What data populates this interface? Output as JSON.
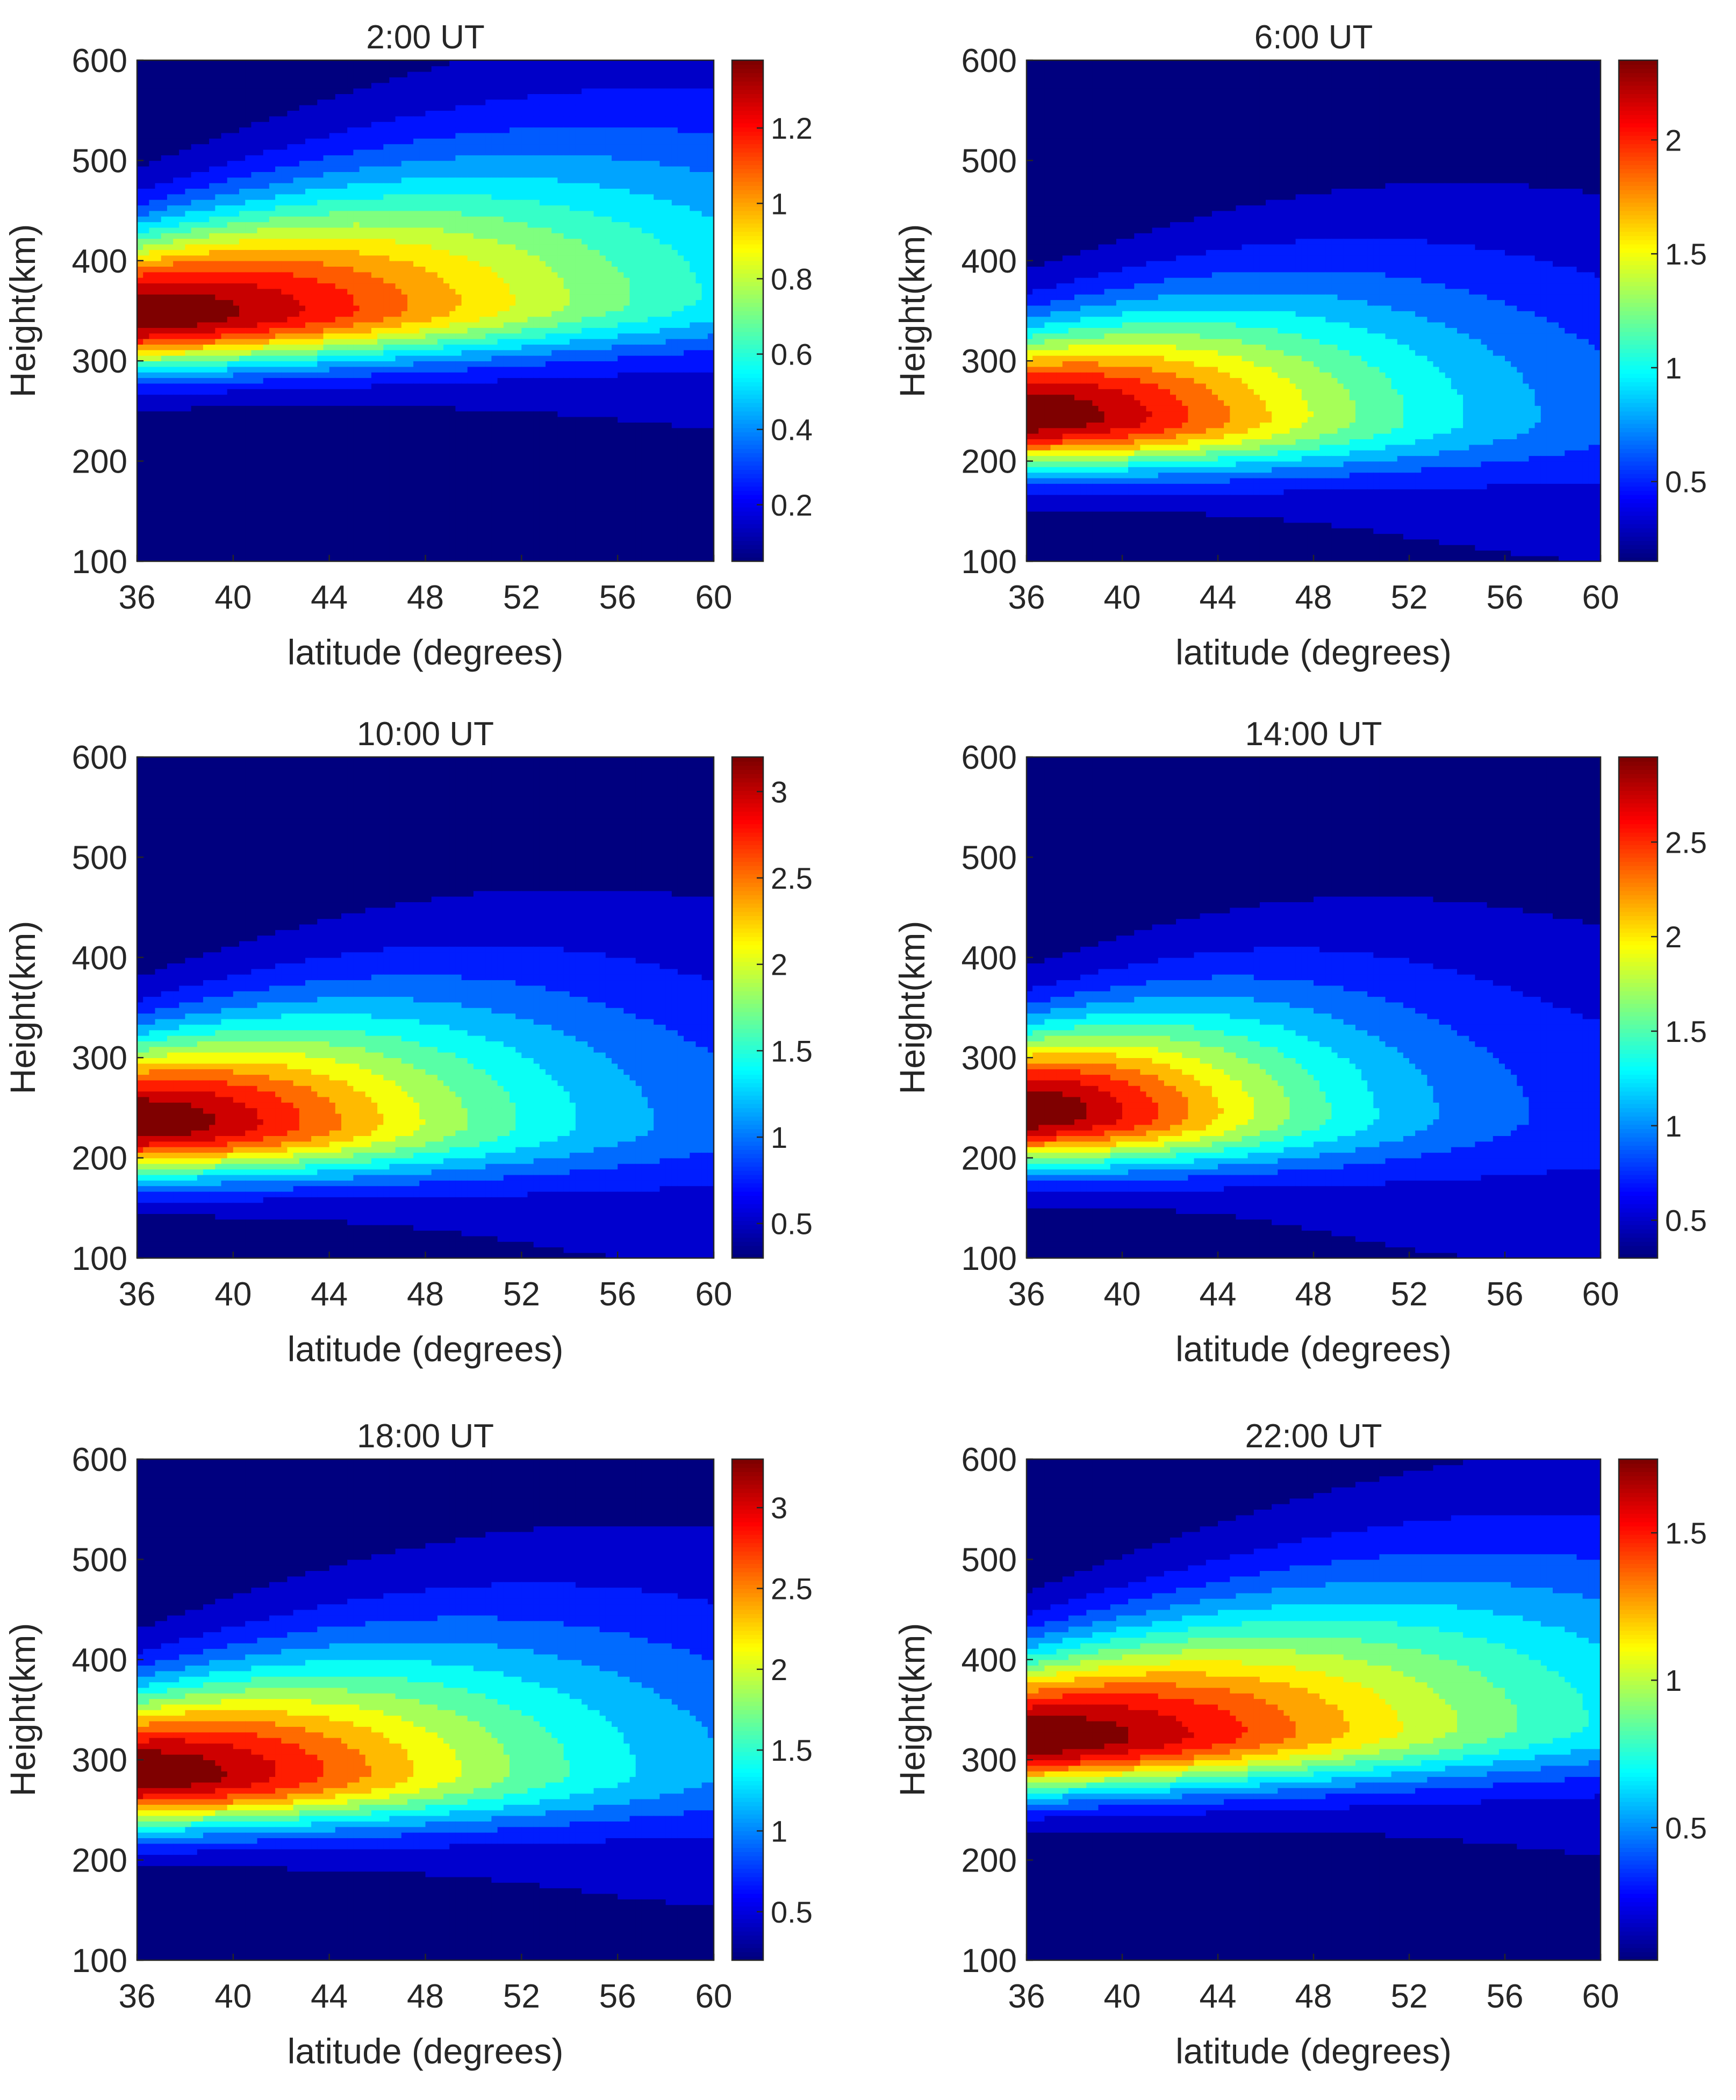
{
  "figure": {
    "rows": 3,
    "cols": 2,
    "colormap": "jet",
    "colormap_stops": [
      "#00007f",
      "#0000ff",
      "#007fff",
      "#00ffff",
      "#7fff7f",
      "#ffff00",
      "#ff7f00",
      "#ff0000",
      "#7f0000"
    ]
  },
  "chart_data": [
    {
      "type": "contourf",
      "title": "2:00 UT",
      "xlabel": "latitude (degrees)",
      "ylabel": "Height(km)",
      "xlim": [
        36,
        60
      ],
      "ylim": [
        100,
        600
      ],
      "x_ticks": [
        36,
        40,
        44,
        48,
        52,
        56,
        60
      ],
      "y_ticks": [
        100,
        200,
        300,
        400,
        500,
        600
      ],
      "colorbar": {
        "range": [
          0.05,
          1.38
        ],
        "ticks": [
          0.2,
          0.4,
          0.6,
          0.8,
          1,
          1.2
        ],
        "tick_labels": [
          "0.2",
          "0.4",
          "0.6",
          "0.8",
          "1",
          "1.2"
        ]
      },
      "peak": {
        "height": [
          345,
          20
        ],
        "lat_decay": [
          21,
          11
        ]
      },
      "levels": 15
    },
    {
      "type": "contourf",
      "title": "6:00 UT",
      "xlabel": "latitude (degrees)",
      "ylabel": "Height(km)",
      "xlim": [
        36,
        60
      ],
      "ylim": [
        100,
        600
      ],
      "x_ticks": [
        36,
        40,
        44,
        48,
        52,
        56,
        60
      ],
      "y_ticks": [
        100,
        200,
        300,
        400,
        500,
        600
      ],
      "colorbar": {
        "range": [
          0.15,
          2.35
        ],
        "ticks": [
          0.5,
          1,
          1.5,
          2
        ],
        "tick_labels": [
          "0.5",
          "1",
          "1.5",
          "2"
        ]
      },
      "peak": {
        "height": [
          245,
          -2
        ],
        "lat_decay": [
          15,
          12
        ]
      },
      "levels": 14
    },
    {
      "type": "contourf",
      "title": "10:00 UT",
      "xlabel": "latitude (degrees)",
      "ylabel": "Height(km)",
      "xlim": [
        36,
        60
      ],
      "ylim": [
        100,
        600
      ],
      "x_ticks": [
        36,
        40,
        44,
        48,
        52,
        56,
        60
      ],
      "y_ticks": [
        100,
        200,
        300,
        400,
        500,
        600
      ],
      "colorbar": {
        "range": [
          0.3,
          3.2
        ],
        "ticks": [
          0.5,
          1,
          1.5,
          2,
          2.5,
          3
        ],
        "tick_labels": [
          "0.5",
          "1",
          "1.5",
          "2",
          "2.5",
          "3"
        ]
      },
      "peak": {
        "height": [
          235,
          0
        ],
        "lat_decay": [
          15,
          9
        ]
      },
      "levels": 14
    },
    {
      "type": "contourf",
      "title": "14:00 UT",
      "xlabel": "latitude (degrees)",
      "ylabel": "Height(km)",
      "xlim": [
        36,
        60
      ],
      "ylim": [
        100,
        600
      ],
      "x_ticks": [
        36,
        40,
        44,
        48,
        52,
        56,
        60
      ],
      "y_ticks": [
        100,
        200,
        300,
        400,
        500,
        600
      ],
      "colorbar": {
        "range": [
          0.3,
          2.95
        ],
        "ticks": [
          0.5,
          1,
          1.5,
          2,
          2.5
        ],
        "tick_labels": [
          "0.5",
          "1",
          "1.5",
          "2",
          "2.5"
        ]
      },
      "peak": {
        "height": [
          245,
          -2
        ],
        "lat_decay": [
          12,
          9
        ]
      },
      "levels": 14
    },
    {
      "type": "contourf",
      "title": "18:00 UT",
      "xlabel": "latitude (degrees)",
      "ylabel": "Height(km)",
      "xlim": [
        36,
        60
      ],
      "ylim": [
        100,
        600
      ],
      "x_ticks": [
        36,
        40,
        44,
        48,
        52,
        56,
        60
      ],
      "y_ticks": [
        100,
        200,
        300,
        400,
        500,
        600
      ],
      "colorbar": {
        "range": [
          0.2,
          3.3
        ],
        "ticks": [
          0.5,
          1,
          1.5,
          2,
          2.5,
          3
        ],
        "tick_labels": [
          "0.5",
          "1",
          "1.5",
          "2",
          "2.5",
          "3"
        ]
      },
      "peak": {
        "height": [
          285,
          6
        ],
        "lat_decay": [
          17,
          11
        ]
      },
      "levels": 14
    },
    {
      "type": "contourf",
      "title": "22:00 UT",
      "xlabel": "latitude (degrees)",
      "ylabel": "Height(km)",
      "xlim": [
        36,
        60
      ],
      "ylim": [
        100,
        600
      ],
      "x_ticks": [
        36,
        40,
        44,
        48,
        52,
        56,
        60
      ],
      "y_ticks": [
        100,
        200,
        300,
        400,
        500,
        600
      ],
      "colorbar": {
        "range": [
          0.05,
          1.75
        ],
        "ticks": [
          0.5,
          1,
          1.5
        ],
        "tick_labels": [
          "0.5",
          "1",
          "1.5"
        ]
      },
      "peak": {
        "height": [
          320,
          18
        ],
        "lat_decay": [
          21,
          11
        ]
      },
      "levels": 15
    }
  ]
}
